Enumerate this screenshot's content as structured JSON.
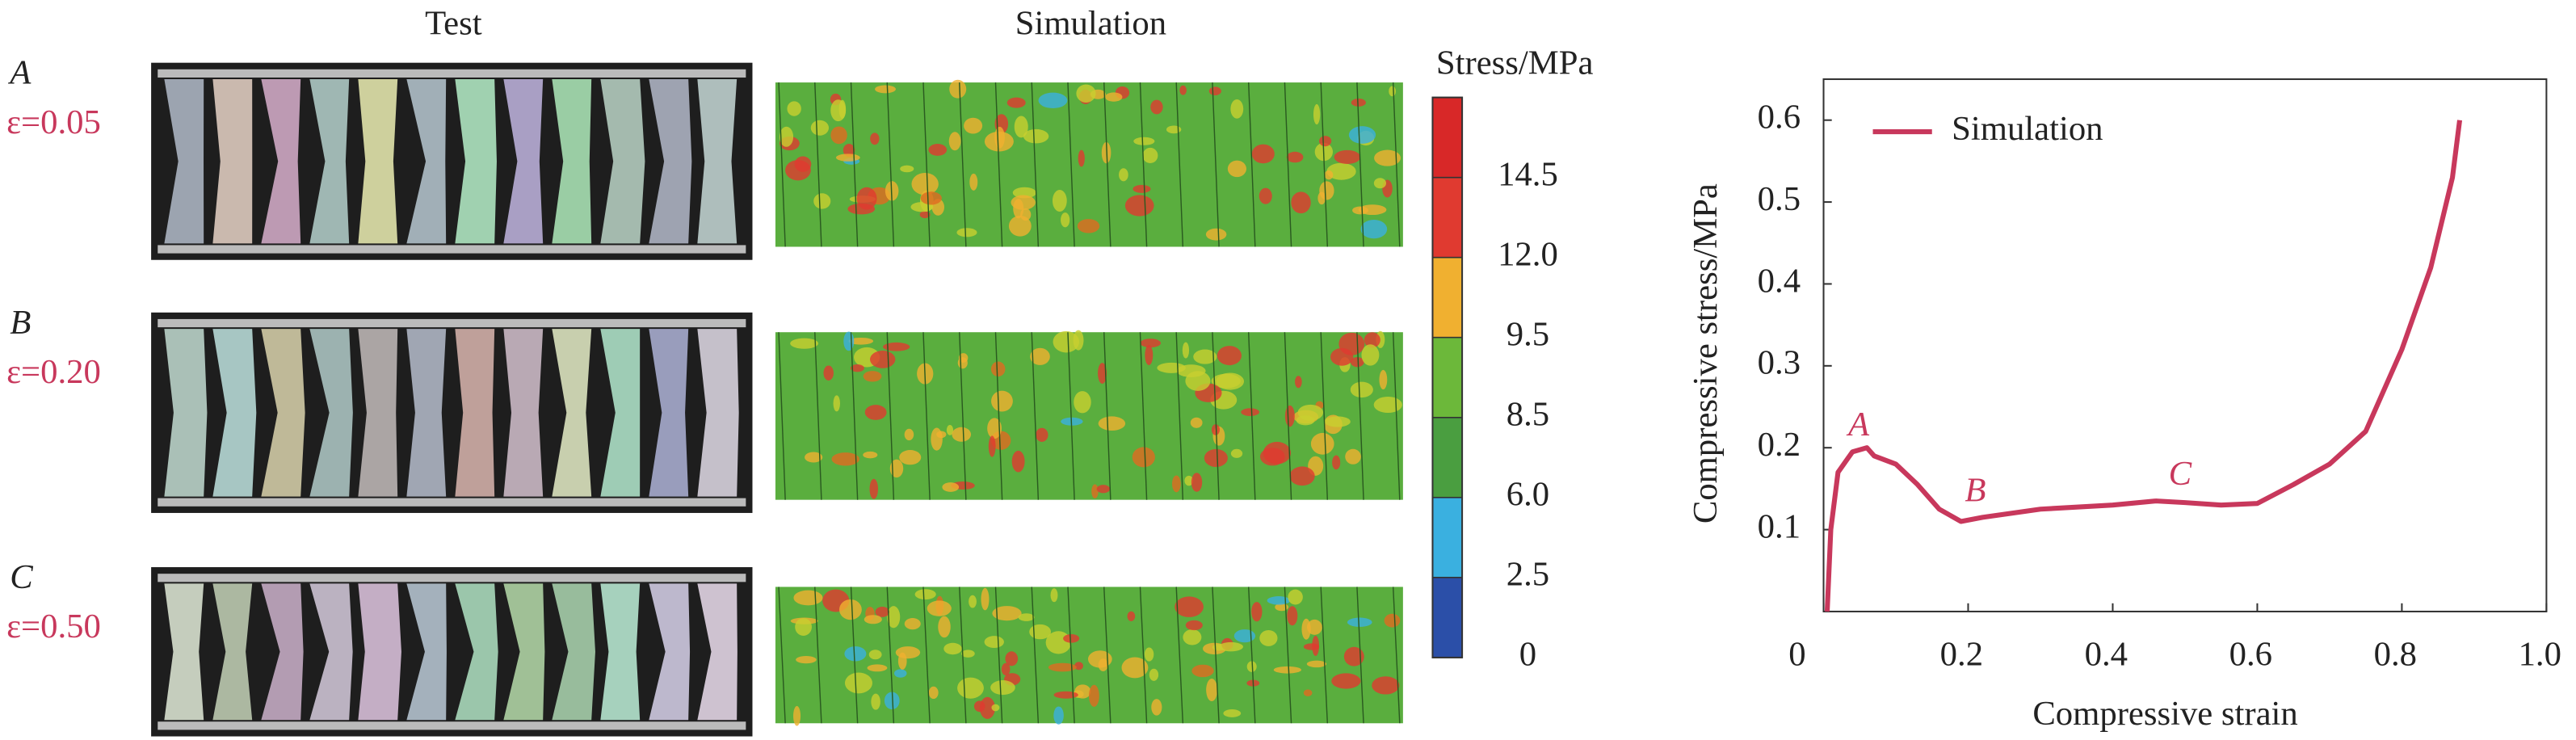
{
  "panels": {
    "headers": [
      "Test",
      "Simulation"
    ],
    "rows": [
      {
        "label": "A",
        "strain": "ε=0.05"
      },
      {
        "label": "B",
        "strain": "ε=0.20"
      },
      {
        "label": "C",
        "strain": "ε=0.50"
      }
    ]
  },
  "colorbar": {
    "title": "Stress/MPa",
    "ticks": [
      0,
      2.5,
      {
        "value": 6,
        "label": "6.0"
      },
      8.5,
      9.5,
      {
        "value": 12,
        "label": "12.0"
      },
      14.5
    ],
    "colors": [
      "#2b4fa8",
      "#3ab0e0",
      "#4a9e40",
      "#6cb83a",
      "#f0b030",
      "#e03a30",
      "#d82828"
    ]
  },
  "chart_data": {
    "type": "line",
    "xlabel": "Compressive strain",
    "ylabel": "Compressive stress/MPa",
    "x": [
      0.005,
      0.01,
      0.02,
      0.04,
      0.06,
      0.07,
      0.1,
      0.13,
      0.16,
      0.19,
      0.22,
      0.3,
      0.4,
      0.46,
      0.5,
      0.55,
      0.6,
      0.65,
      0.7,
      0.75,
      0.8,
      0.84,
      0.87,
      0.88
    ],
    "series": [
      {
        "name": "Simulation",
        "color": "#c8385c",
        "values": [
          0.0,
          0.1,
          0.17,
          0.195,
          0.2,
          0.19,
          0.18,
          0.155,
          0.125,
          0.11,
          0.115,
          0.125,
          0.13,
          0.135,
          0.133,
          0.13,
          0.132,
          0.155,
          0.18,
          0.22,
          0.32,
          0.42,
          0.53,
          0.6
        ]
      }
    ],
    "annotations": [
      "A",
      "B",
      "C"
    ],
    "xlim": [
      0,
      1
    ],
    "xticks": [
      0,
      0.2,
      0.4,
      0.6,
      0.8,
      {
        "value": 1,
        "label": "1.0"
      }
    ],
    "ylim": [
      0,
      0.65
    ],
    "yticks": [
      0.1,
      0.2,
      0.3,
      0.4,
      0.5,
      0.6
    ],
    "grid": false,
    "legend": "upper left"
  }
}
